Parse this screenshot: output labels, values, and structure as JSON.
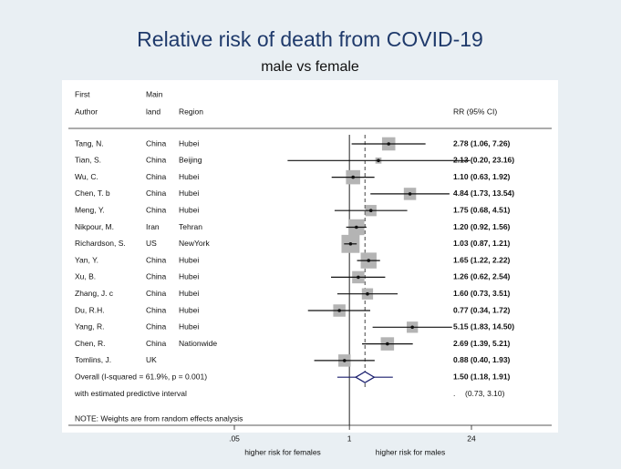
{
  "chart_data": {
    "type": "forest",
    "title": "Relative risk of death from COVID-19",
    "subtitle": "male vs female",
    "headers": {
      "author": [
        "First",
        "Author"
      ],
      "land": [
        "Main",
        "land"
      ],
      "region": "Region",
      "estimate": "RR (95% CI)"
    },
    "studies": [
      {
        "author": "Tang, N.",
        "land": "China",
        "region": "Hubei",
        "rr": 2.78,
        "lo": 1.06,
        "hi": 7.26,
        "value_label": "2.78 (1.06, 7.26)",
        "weight": 7
      },
      {
        "author": "Tian, S.",
        "land": "China",
        "region": "Beijing",
        "rr": 2.13,
        "lo": 0.2,
        "hi": 23.16,
        "value_label": "2.13 (0.20, 23.16)",
        "weight": 1.5
      },
      {
        "author": "Wu, C.",
        "land": "China",
        "region": "Hubei",
        "rr": 1.1,
        "lo": 0.63,
        "hi": 1.92,
        "value_label": "1.10 (0.63, 1.92)",
        "weight": 8
      },
      {
        "author": "Chen, T. b",
        "land": "China",
        "region": "Hubei",
        "rr": 4.84,
        "lo": 1.73,
        "hi": 13.54,
        "value_label": "4.84 (1.73, 13.54)",
        "weight": 6
      },
      {
        "author": "Meng, Y.",
        "land": "China",
        "region": "Hubei",
        "rr": 1.75,
        "lo": 0.68,
        "hi": 4.51,
        "value_label": "1.75 (0.68, 4.51)",
        "weight": 5
      },
      {
        "author": "Nikpour, M.",
        "land": "Iran",
        "region": "Tehran",
        "rr": 1.2,
        "lo": 0.92,
        "hi": 1.56,
        "value_label": "1.20 (0.92, 1.56)",
        "weight": 10
      },
      {
        "author": "Richardson, S.",
        "land": "US",
        "region": "NewYork",
        "rr": 1.03,
        "lo": 0.87,
        "hi": 1.21,
        "value_label": "1.03 (0.87, 1.21)",
        "weight": 13
      },
      {
        "author": "Yan, Y.",
        "land": "China",
        "region": "Hubei",
        "rr": 1.65,
        "lo": 1.22,
        "hi": 2.22,
        "value_label": "1.65 (1.22, 2.22)",
        "weight": 10
      },
      {
        "author": "Xu, B.",
        "land": "China",
        "region": "Hubei",
        "rr": 1.26,
        "lo": 0.62,
        "hi": 2.54,
        "value_label": "1.26 (0.62, 2.54)",
        "weight": 6
      },
      {
        "author": "Zhang, J. c",
        "land": "China",
        "region": "Hubei",
        "rr": 1.6,
        "lo": 0.73,
        "hi": 3.51,
        "value_label": "1.60 (0.73, 3.51)",
        "weight": 5
      },
      {
        "author": "Du, R.H.",
        "land": "China",
        "region": "Hubei",
        "rr": 0.77,
        "lo": 0.34,
        "hi": 1.72,
        "value_label": "0.77 (0.34, 1.72)",
        "weight": 6
      },
      {
        "author": "Yang, R.",
        "land": "China",
        "region": "Hubei",
        "rr": 5.15,
        "lo": 1.83,
        "hi": 14.5,
        "value_label": "5.15 (1.83, 14.50)",
        "weight": 5
      },
      {
        "author": "Chen, R.",
        "land": "China",
        "region": "Nationwide",
        "rr": 2.69,
        "lo": 1.39,
        "hi": 5.21,
        "value_label": "2.69 (1.39, 5.21)",
        "weight": 7
      },
      {
        "author": "Tomlins, J.",
        "land": "UK",
        "region": "",
        "rr": 0.88,
        "lo": 0.4,
        "hi": 1.93,
        "value_label": "0.88 (0.40, 1.93)",
        "weight": 6
      }
    ],
    "overall": {
      "text": "Overall  (I-squared = 61.9%, p = 0.001)",
      "rr": 1.5,
      "lo": 1.18,
      "hi": 1.91,
      "value_label": "1.50 (1.18, 1.91)"
    },
    "predictive": {
      "text": "with estimated predictive interval",
      "estimate_label": ".",
      "lo": 0.73,
      "hi": 3.1,
      "value_label": "(0.73, 3.10)"
    },
    "note": "NOTE: Weights are from random effects analysis",
    "log_x": true,
    "xlim": [
      0.05,
      24
    ],
    "xticks": [
      {
        "value": 0.05,
        "label": ".05"
      },
      1,
      24
    ],
    "reference_line": 1,
    "xlabels": [
      "higher risk for females",
      "higher risk for males"
    ],
    "box_color": "#b4b4b4",
    "diamond_color": "#1a1f6e"
  }
}
